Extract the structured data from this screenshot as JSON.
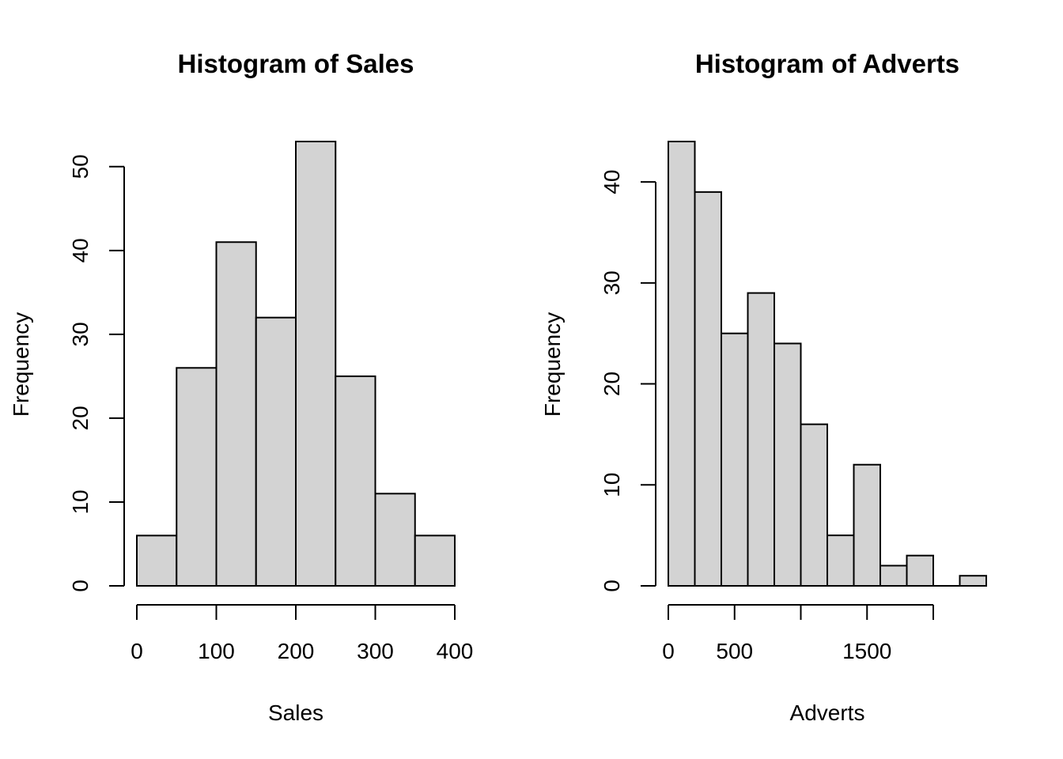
{
  "chart_data": [
    {
      "type": "bar",
      "subtype": "histogram",
      "title": "Histogram of Sales",
      "xlabel": "Sales",
      "ylabel": "Frequency",
      "bin_edges": [
        0,
        50,
        100,
        150,
        200,
        250,
        300,
        350,
        400
      ],
      "values": [
        6,
        26,
        41,
        32,
        53,
        25,
        11,
        6
      ],
      "xlim": [
        0,
        400
      ],
      "ylim": [
        0,
        53
      ],
      "x_ticks": [
        0,
        100,
        200,
        300,
        400
      ],
      "x_tick_labels": [
        "0",
        "100",
        "200",
        "300",
        "400"
      ],
      "y_ticks": [
        0,
        10,
        20,
        30,
        40,
        50
      ],
      "y_tick_labels": [
        "0",
        "10",
        "20",
        "30",
        "40",
        "50"
      ],
      "bar_color": "#d3d3d3",
      "grid": false
    },
    {
      "type": "bar",
      "subtype": "histogram",
      "title": "Histogram of Adverts",
      "xlabel": "Adverts",
      "ylabel": "Frequency",
      "bin_edges": [
        0,
        200,
        400,
        600,
        800,
        1000,
        1200,
        1400,
        1600,
        1800,
        2000,
        2200,
        2400
      ],
      "values": [
        44,
        39,
        25,
        29,
        24,
        16,
        5,
        12,
        2,
        3,
        0,
        1
      ],
      "xlim": [
        0,
        2400
      ],
      "ylim": [
        0,
        44
      ],
      "x_ticks": [
        0,
        500,
        1000,
        1500,
        2000
      ],
      "x_tick_labels": [
        "0",
        "500",
        "",
        "1500",
        ""
      ],
      "y_ticks": [
        0,
        10,
        20,
        30,
        40
      ],
      "y_tick_labels": [
        "0",
        "10",
        "20",
        "30",
        "40"
      ],
      "bar_color": "#d3d3d3",
      "grid": false
    }
  ]
}
